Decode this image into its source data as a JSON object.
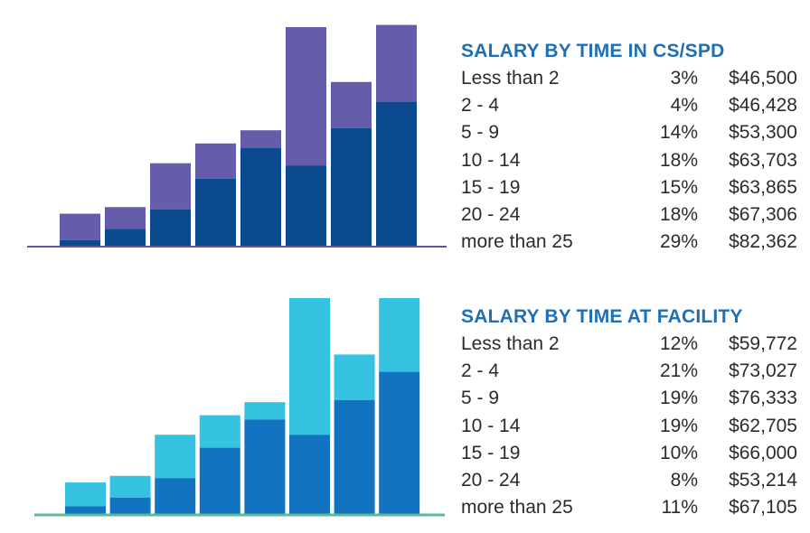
{
  "chart_data": [
    {
      "type": "bar",
      "stacked": true,
      "title": "SALARY BY TIME IN CS/SPD",
      "colors": {
        "lower": "#0b4a8e",
        "upper": "#655daa",
        "baseline": "#5a55a0"
      },
      "series": [
        {
          "name": "lower",
          "values": [
            3,
            8,
            17,
            31,
            45,
            37,
            54,
            66
          ]
        },
        {
          "name": "upper",
          "values": [
            12,
            10,
            21,
            16,
            8,
            63,
            21,
            35
          ]
        }
      ],
      "ylim": [
        0,
        100
      ],
      "rows": [
        {
          "label": "Less than 2",
          "pct": "3%",
          "salary": "$46,500"
        },
        {
          "label": "2 - 4",
          "pct": "4%",
          "salary": "$46,428"
        },
        {
          "label": "5 - 9",
          "pct": "14%",
          "salary": "$53,300"
        },
        {
          "label": "10 - 14",
          "pct": "18%",
          "salary": "$63,703"
        },
        {
          "label": "15 - 19",
          "pct": "15%",
          "salary": "$63,865"
        },
        {
          "label": "20 - 24",
          "pct": "18%",
          "salary": "$67,306"
        },
        {
          "label": "more than 25",
          "pct": "29%",
          "salary": "$82,362"
        }
      ]
    },
    {
      "type": "bar",
      "stacked": true,
      "title": "SALARY BY TIME AT FACILITY",
      "colors": {
        "lower": "#1273c0",
        "upper": "#36c3e2",
        "baseline": "#5cb896"
      },
      "series": [
        {
          "name": "lower",
          "values": [
            4,
            8,
            17,
            31,
            44,
            37,
            53,
            66
          ]
        },
        {
          "name": "upper",
          "values": [
            11,
            10,
            20,
            15,
            8,
            63,
            21,
            34
          ]
        }
      ],
      "ylim": [
        0,
        100
      ],
      "rows": [
        {
          "label": "Less than 2",
          "pct": "12%",
          "salary": "$59,772"
        },
        {
          "label": "2 - 4",
          "pct": "21%",
          "salary": "$73,027"
        },
        {
          "label": "5 - 9",
          "pct": "19%",
          "salary": "$76,333"
        },
        {
          "label": "10 - 14",
          "pct": "19%",
          "salary": "$62,705"
        },
        {
          "label": "15 - 19",
          "pct": "10%",
          "salary": "$66,000"
        },
        {
          "label": "20 - 24",
          "pct": "8%",
          "salary": "$53,214"
        },
        {
          "label": "more than 25",
          "pct": "11%",
          "salary": "$67,105"
        }
      ]
    }
  ]
}
